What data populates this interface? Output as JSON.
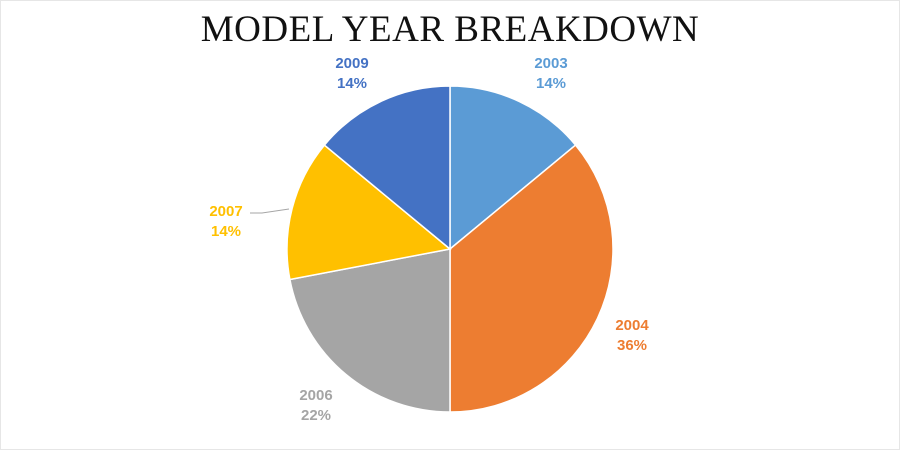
{
  "chart_data": {
    "type": "pie",
    "title": "MODEL YEAR BREAKDOWN",
    "categories": [
      "2003",
      "2004",
      "2006",
      "2007",
      "2009"
    ],
    "values": [
      14,
      36,
      22,
      14,
      14
    ],
    "value_labels": [
      "14%",
      "36%",
      "22%",
      "14%",
      "14%"
    ],
    "colors": [
      "#5b9bd5",
      "#ed7d31",
      "#a5a5a5",
      "#ffc000",
      "#4472c4"
    ],
    "label_colors": [
      "#5b9bd5",
      "#ed7d31",
      "#a5a5a5",
      "#ffc000",
      "#4472c4"
    ],
    "legend": "none",
    "data_labels": "category and percentage"
  }
}
